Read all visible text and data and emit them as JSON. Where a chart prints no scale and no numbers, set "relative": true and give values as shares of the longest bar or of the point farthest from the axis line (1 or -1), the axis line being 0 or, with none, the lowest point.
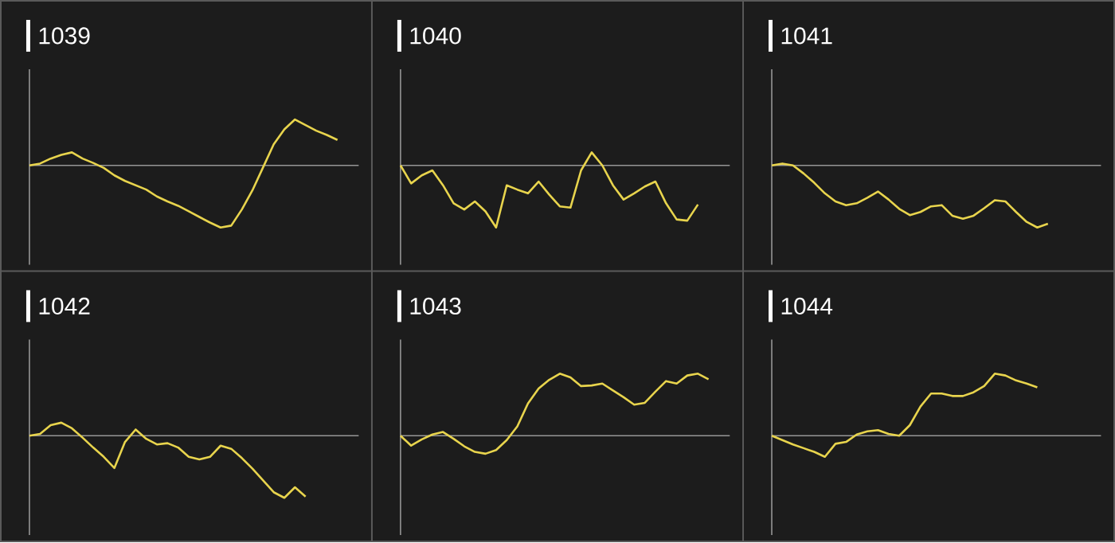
{
  "chart_data": [
    {
      "type": "line",
      "title": "1039",
      "relative": true,
      "categories": [
        null,
        null,
        null,
        null,
        null,
        null,
        null,
        null,
        null,
        null,
        null,
        null,
        null,
        null,
        null,
        null,
        null,
        null,
        null,
        null,
        null,
        null,
        null,
        null,
        null,
        null,
        null,
        null,
        null,
        null,
        null,
        null
      ],
      "series": [
        {
          "color": "#e8d44d",
          "values": [
            0,
            0.03,
            0.11,
            0.17,
            0.21,
            0.11,
            0.04,
            -0.04,
            -0.16,
            -0.25,
            -0.32,
            -0.39,
            -0.5,
            -0.58,
            -0.65,
            -0.74,
            -0.83,
            -0.92,
            -1,
            -0.97,
            -0.71,
            -0.4,
            -0.03,
            0.34,
            0.58,
            0.74,
            0.65,
            0.56,
            0.49,
            0.41,
            null,
            null
          ]
        }
      ]
    },
    {
      "type": "line",
      "title": "1040",
      "relative": true,
      "categories": [
        null,
        null,
        null,
        null,
        null,
        null,
        null,
        null,
        null,
        null,
        null,
        null,
        null,
        null,
        null,
        null,
        null,
        null,
        null,
        null,
        null,
        null,
        null,
        null,
        null,
        null,
        null,
        null,
        null,
        null,
        null,
        null
      ],
      "series": [
        {
          "color": "#e8d44d",
          "values": [
            0,
            -0.29,
            -0.16,
            -0.08,
            -0.32,
            -0.61,
            -0.71,
            -0.58,
            -0.74,
            -1,
            -0.32,
            -0.39,
            -0.45,
            -0.26,
            -0.47,
            -0.66,
            -0.68,
            -0.08,
            0.21,
            0,
            -0.32,
            -0.55,
            -0.45,
            -0.34,
            -0.26,
            -0.61,
            -0.87,
            -0.89,
            -0.63,
            null,
            null,
            null
          ]
        }
      ]
    },
    {
      "type": "line",
      "title": "1041",
      "relative": true,
      "categories": [
        null,
        null,
        null,
        null,
        null,
        null,
        null,
        null,
        null,
        null,
        null,
        null,
        null,
        null,
        null,
        null,
        null,
        null,
        null,
        null,
        null,
        null,
        null,
        null,
        null,
        null,
        null,
        null,
        null,
        null,
        null,
        null
      ],
      "series": [
        {
          "color": "#e8d44d",
          "values": [
            0,
            0.03,
            0,
            -0.13,
            -0.28,
            -0.45,
            -0.58,
            -0.64,
            -0.61,
            -0.52,
            -0.42,
            -0.55,
            -0.7,
            -0.8,
            -0.75,
            -0.66,
            -0.64,
            -0.81,
            -0.86,
            -0.81,
            -0.69,
            -0.56,
            -0.58,
            -0.75,
            -0.91,
            -1,
            -0.94,
            null,
            null,
            null,
            null,
            null
          ]
        }
      ]
    },
    {
      "type": "line",
      "title": "1042",
      "relative": true,
      "categories": [
        null,
        null,
        null,
        null,
        null,
        null,
        null,
        null,
        null,
        null,
        null,
        null,
        null,
        null,
        null,
        null,
        null,
        null,
        null,
        null,
        null,
        null,
        null,
        null,
        null,
        null,
        null,
        null,
        null,
        null,
        null,
        null
      ],
      "series": [
        {
          "color": "#e8d44d",
          "values": [
            0,
            0.03,
            0.17,
            0.21,
            0.12,
            -0.03,
            -0.19,
            -0.34,
            -0.52,
            -0.1,
            0.1,
            -0.05,
            -0.14,
            -0.12,
            -0.19,
            -0.34,
            -0.38,
            -0.34,
            -0.16,
            -0.21,
            -0.36,
            -0.53,
            -0.72,
            -0.91,
            -1,
            -0.83,
            -0.98,
            null,
            null,
            null,
            null,
            null
          ]
        }
      ]
    },
    {
      "type": "line",
      "title": "1043",
      "relative": true,
      "categories": [
        null,
        null,
        null,
        null,
        null,
        null,
        null,
        null,
        null,
        null,
        null,
        null,
        null,
        null,
        null,
        null,
        null,
        null,
        null,
        null,
        null,
        null,
        null,
        null,
        null,
        null,
        null,
        null,
        null,
        null,
        null,
        null
      ],
      "series": [
        {
          "color": "#e8d44d",
          "values": [
            0,
            -0.16,
            -0.06,
            0.02,
            0.06,
            -0.05,
            -0.17,
            -0.26,
            -0.29,
            -0.23,
            -0.07,
            0.15,
            0.52,
            0.76,
            0.9,
            1,
            0.94,
            0.8,
            0.81,
            0.84,
            0.73,
            0.62,
            0.5,
            0.53,
            0.71,
            0.88,
            0.84,
            0.97,
            1,
            0.91,
            null,
            null
          ]
        }
      ]
    },
    {
      "type": "line",
      "title": "1044",
      "relative": true,
      "categories": [
        null,
        null,
        null,
        null,
        null,
        null,
        null,
        null,
        null,
        null,
        null,
        null,
        null,
        null,
        null,
        null,
        null,
        null,
        null,
        null,
        null,
        null,
        null,
        null,
        null,
        null,
        null,
        null,
        null,
        null,
        null,
        null
      ],
      "series": [
        {
          "color": "#e8d44d",
          "values": [
            0,
            -0.07,
            -0.14,
            -0.2,
            -0.26,
            -0.34,
            -0.13,
            -0.1,
            0.02,
            0.07,
            0.09,
            0.03,
            0,
            0.17,
            0.47,
            0.68,
            0.68,
            0.64,
            0.64,
            0.7,
            0.8,
            1,
            0.97,
            0.89,
            0.84,
            0.78,
            null,
            null,
            null,
            null,
            null,
            null
          ]
        }
      ]
    }
  ]
}
